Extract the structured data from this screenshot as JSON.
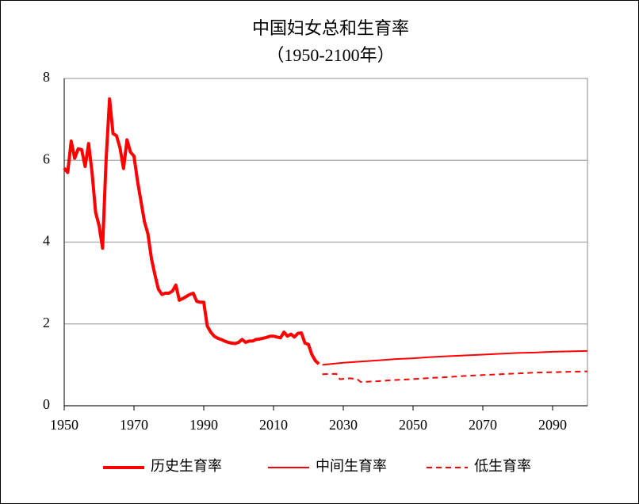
{
  "chart_data": {
    "type": "line",
    "title": "中国妇女总和生育率",
    "subtitle": "（1950-2100年）",
    "xlim": [
      1950,
      2100
    ],
    "xticks": [
      1950,
      1970,
      1990,
      2010,
      2030,
      2050,
      2070,
      2090
    ],
    "ylim": [
      0,
      8
    ],
    "yticks": [
      0,
      2,
      4,
      6,
      8
    ],
    "grid": true,
    "series": [
      {
        "name": "历史生育率",
        "color": "#ff0000",
        "line_width": 4,
        "dash": false,
        "x": [
          1950,
          1951,
          1952,
          1953,
          1954,
          1955,
          1956,
          1957,
          1958,
          1959,
          1960,
          1961,
          1962,
          1963,
          1964,
          1965,
          1966,
          1967,
          1968,
          1969,
          1970,
          1971,
          1972,
          1973,
          1974,
          1975,
          1976,
          1977,
          1978,
          1979,
          1980,
          1981,
          1982,
          1983,
          1984,
          1985,
          1986,
          1987,
          1988,
          1989,
          1990,
          1991,
          1992,
          1993,
          1994,
          1995,
          1996,
          1997,
          1998,
          1999,
          2000,
          2001,
          2002,
          2003,
          2004,
          2005,
          2006,
          2007,
          2008,
          2009,
          2010,
          2011,
          2012,
          2013,
          2014,
          2015,
          2016,
          2017,
          2018,
          2019,
          2020,
          2021,
          2022,
          2023
        ],
        "values": [
          5.81,
          5.7,
          6.47,
          6.05,
          6.28,
          6.26,
          5.85,
          6.41,
          5.68,
          4.73,
          4.4,
          3.85,
          6.0,
          7.5,
          6.65,
          6.6,
          6.3,
          5.8,
          6.5,
          6.2,
          6.1,
          5.5,
          5.0,
          4.5,
          4.2,
          3.6,
          3.2,
          2.85,
          2.72,
          2.75,
          2.75,
          2.8,
          2.95,
          2.58,
          2.62,
          2.67,
          2.72,
          2.75,
          2.55,
          2.53,
          2.53,
          1.95,
          1.8,
          1.7,
          1.65,
          1.62,
          1.58,
          1.55,
          1.53,
          1.52,
          1.55,
          1.62,
          1.55,
          1.58,
          1.58,
          1.62,
          1.63,
          1.65,
          1.67,
          1.7,
          1.7,
          1.68,
          1.66,
          1.8,
          1.7,
          1.75,
          1.68,
          1.77,
          1.78,
          1.53,
          1.5,
          1.25,
          1.1,
          1.02
        ]
      },
      {
        "name": "中间生育率",
        "color": "#ff0000",
        "line_width": 2,
        "dash": false,
        "x": [
          2024,
          2030,
          2035,
          2040,
          2045,
          2050,
          2055,
          2060,
          2065,
          2070,
          2075,
          2080,
          2085,
          2090,
          2095,
          2100
        ],
        "values": [
          1.0,
          1.05,
          1.08,
          1.11,
          1.14,
          1.16,
          1.19,
          1.21,
          1.23,
          1.25,
          1.27,
          1.29,
          1.3,
          1.32,
          1.33,
          1.34
        ]
      },
      {
        "name": "低生育率",
        "color": "#ff0000",
        "line_width": 2,
        "dash": true,
        "x": [
          2024,
          2028,
          2029,
          2032,
          2034,
          2035,
          2040,
          2045,
          2050,
          2055,
          2060,
          2065,
          2070,
          2075,
          2080,
          2085,
          2090,
          2095,
          2100
        ],
        "values": [
          0.77,
          0.78,
          0.65,
          0.67,
          0.65,
          0.58,
          0.6,
          0.63,
          0.65,
          0.68,
          0.7,
          0.73,
          0.75,
          0.77,
          0.79,
          0.81,
          0.82,
          0.83,
          0.84
        ]
      }
    ]
  }
}
